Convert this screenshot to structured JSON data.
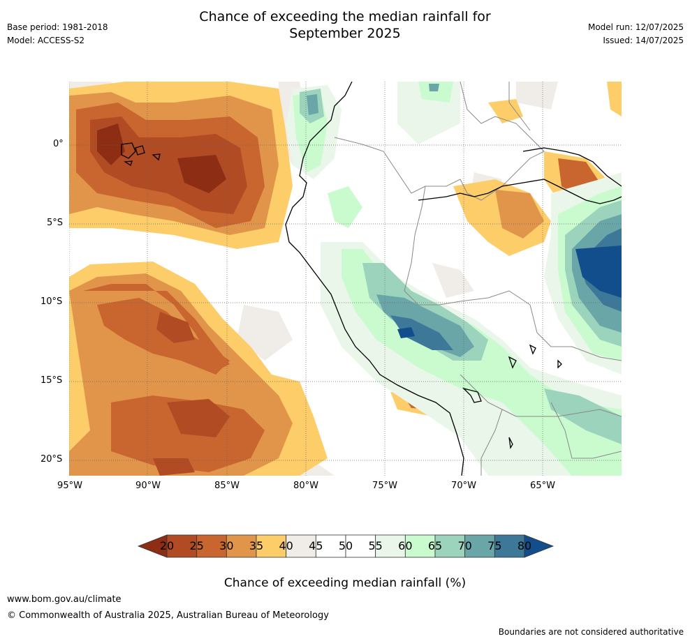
{
  "title": {
    "line1": "Chance of exceeding the median rainfall for",
    "line2": "September 2025"
  },
  "meta_left": {
    "base_period": "Base period: 1981-2018",
    "model": "Model: ACCESS-S2"
  },
  "meta_right": {
    "model_run": "Model run: 12/07/2025",
    "issued": "Issued: 14/07/2025"
  },
  "map": {
    "region": "Eastern Pacific and western South America",
    "lat_labels": [
      "0°",
      "5°S",
      "10°S",
      "15°S",
      "20°S"
    ],
    "lon_labels": [
      "95°W",
      "90°W",
      "85°W",
      "80°W",
      "75°W",
      "70°W",
      "65°W"
    ],
    "gridlines": true
  },
  "colorbar": {
    "ticks": [
      "20",
      "25",
      "30",
      "35",
      "40",
      "45",
      "50",
      "55",
      "60",
      "65",
      "70",
      "75",
      "80"
    ],
    "colors": [
      "#8c2d14",
      "#b04b24",
      "#c9652e",
      "#e0954a",
      "#fdcd6a",
      "#f0ece7",
      "#ffffff",
      "#ffffff",
      "#eaf6ea",
      "#c9fbce",
      "#9cd3bd",
      "#6aa6a8",
      "#3e7898",
      "#124e8c"
    ],
    "label": "Chance of exceeding median rainfall (%)"
  },
  "footer": {
    "website": "www.bom.gov.au/climate",
    "copyright": "© Commonwealth of Australia 2025, Australian Bureau of Meteorology",
    "disclaimer": "Boundaries are not considered authoritative"
  }
}
